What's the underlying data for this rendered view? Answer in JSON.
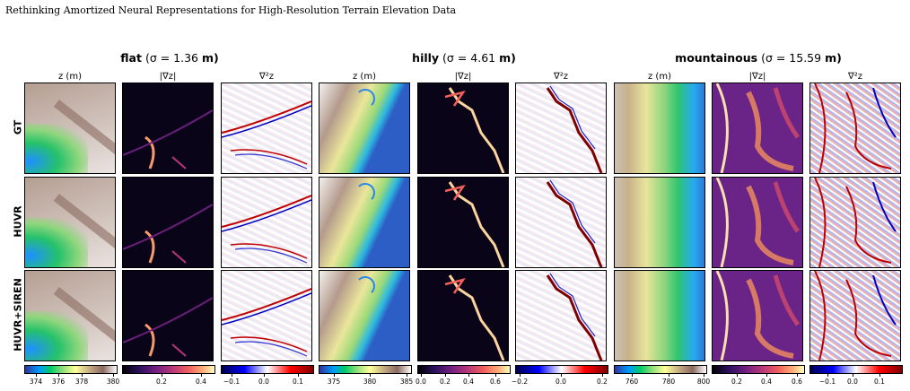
{
  "header": "Rethinking Amortized Neural Representations for High-Resolution Terrain Elevation Data",
  "groups": [
    {
      "name": "flat",
      "sigma": " (σ = 1.36 ",
      "unit": "m)"
    },
    {
      "name": "hilly",
      "sigma": " (σ = 4.61 ",
      "unit": "m)"
    },
    {
      "name": "mountainous",
      "sigma": " (σ = 15.59 ",
      "unit": "m)"
    }
  ],
  "columns": [
    "z (m)",
    "|∇z|",
    "∇²z"
  ],
  "rows": [
    "GT",
    "HUVR",
    "HUVR+SIREN"
  ],
  "colorbars": [
    {
      "cmap": "terrain",
      "ticks": [
        "374",
        "376",
        "378",
        "380"
      ]
    },
    {
      "cmap": "magma",
      "ticks": [
        "0.2",
        "0.4"
      ]
    },
    {
      "cmap": "seismic",
      "ticks": [
        "−0.1",
        "0.0",
        "0.1"
      ]
    },
    {
      "cmap": "terrain",
      "ticks": [
        "375",
        "380",
        "385"
      ]
    },
    {
      "cmap": "magma",
      "ticks": [
        "0.0",
        "0.2",
        "0.4",
        "0.6"
      ]
    },
    {
      "cmap": "seismic",
      "ticks": [
        "−0.2",
        "0.0",
        "0.2"
      ]
    },
    {
      "cmap": "terrain",
      "ticks": [
        "760",
        "780",
        "800"
      ]
    },
    {
      "cmap": "magma",
      "ticks": [
        "0.2",
        "0.4",
        "0.6"
      ]
    },
    {
      "cmap": "seismic",
      "ticks": [
        "−0.1",
        "0.0",
        "0.1"
      ]
    }
  ]
}
